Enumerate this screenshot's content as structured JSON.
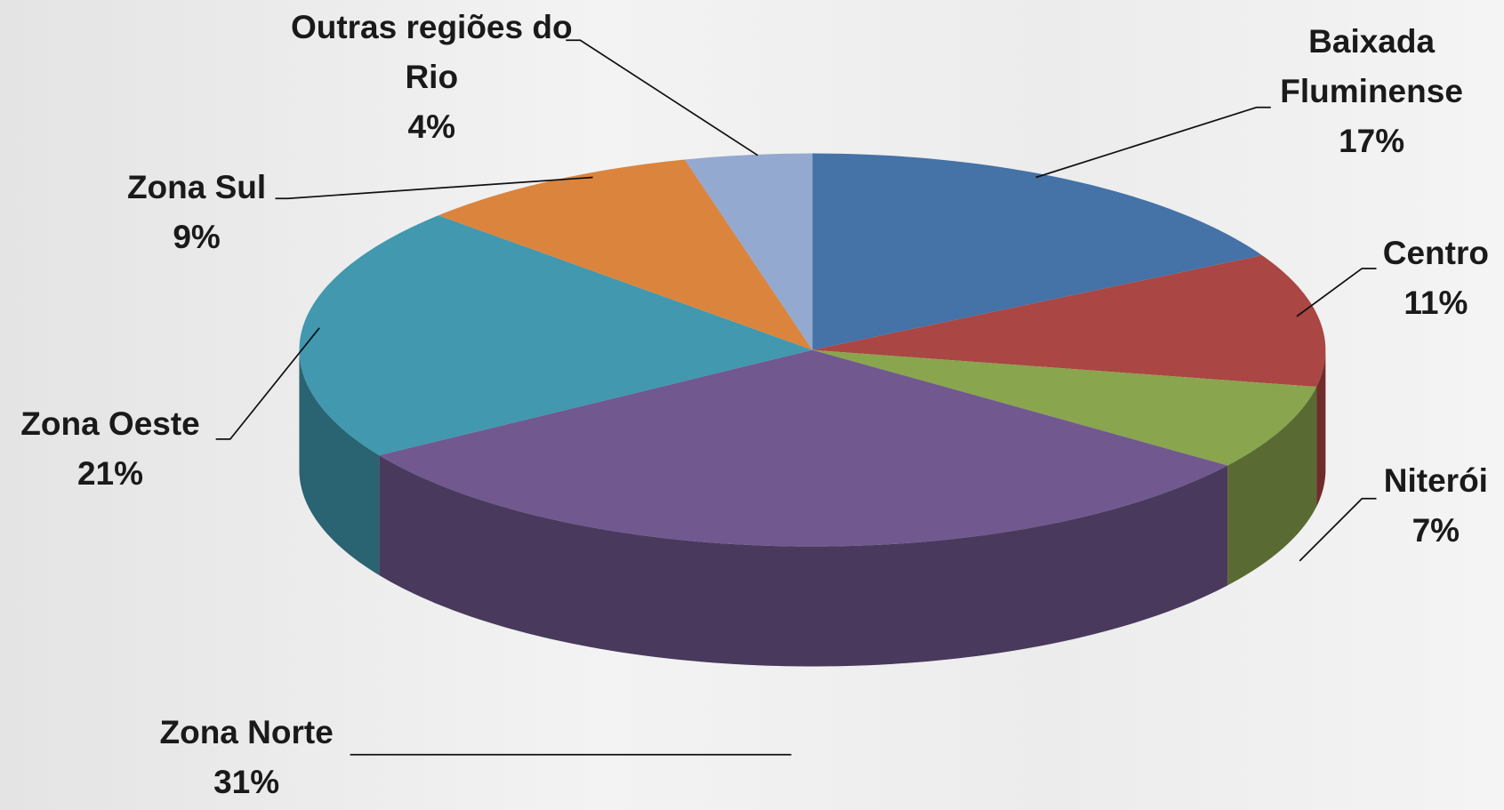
{
  "chart_data": {
    "type": "pie3d",
    "categories": [
      "Baixada Fluminense",
      "Centro",
      "Niterói",
      "Zona Norte",
      "Zona Oeste",
      "Zona Sul",
      "Outras regiões do Rio"
    ],
    "values": [
      17,
      11,
      7,
      31,
      21,
      9,
      4
    ],
    "value_labels": [
      "17%",
      "11%",
      "7%",
      "31%",
      "21%",
      "9%",
      "4%"
    ],
    "colors": [
      "#4572a7",
      "#aa4643",
      "#89a54e",
      "#71588f",
      "#4198af",
      "#db843d",
      "#93a9cf"
    ]
  }
}
